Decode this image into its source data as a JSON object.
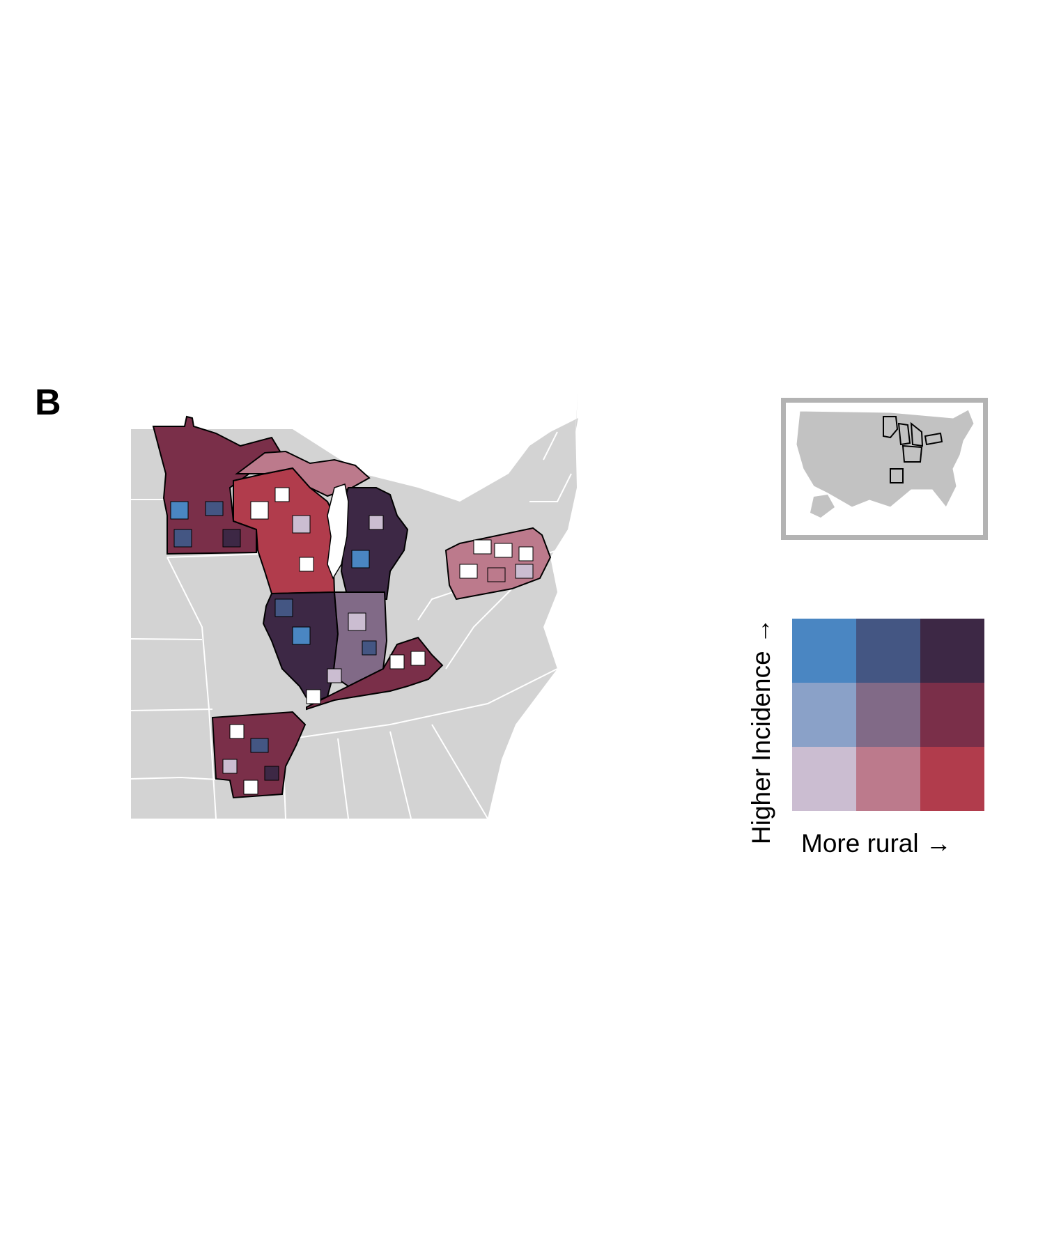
{
  "panel_label": "B",
  "legend": {
    "y_label": "Higher Incidence →",
    "x_label": "More rural →",
    "rows": [
      [
        "#4a86c2",
        "#445683",
        "#3d2845"
      ],
      [
        "#8aa1c8",
        "#816a87",
        "#7a2f49"
      ],
      [
        "#cbbdd1",
        "#bc7a8c",
        "#b13c4c"
      ]
    ]
  },
  "colors": {
    "land": "#d3d3d3",
    "state_borders": "#ffffff",
    "county_outline": "#000000",
    "inset_border": "#b3b3b3",
    "inset_land": "#c2c2c2",
    "no_data": "#ffffff"
  }
}
